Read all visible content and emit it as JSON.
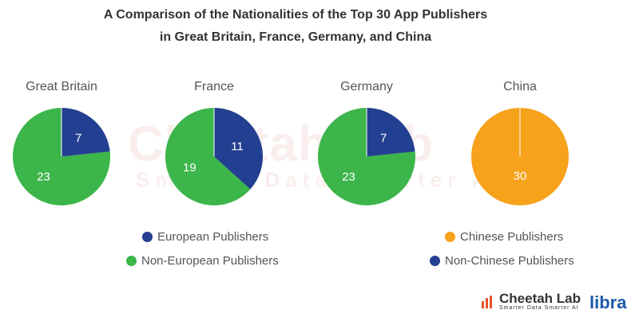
{
  "title_line1": "A Comparison of the Nationalities of the Top 30 App Publishers",
  "title_line2": "in Great Britain, France, Germany, and China",
  "colors": {
    "european": "#233f91",
    "non_european": "#3cb54a",
    "chinese": "#f7a21b",
    "non_chinese": "#233f91"
  },
  "chart_data": {
    "type": "pie",
    "title": "A Comparison of the Nationalities of the Top 30 App Publishers in Great Britain, France, Germany, and China",
    "pies": [
      {
        "country": "Great Britain",
        "slices": [
          {
            "label": "European Publishers",
            "value": 7,
            "color": "#233f91"
          },
          {
            "label": "Non-European Publishers",
            "value": 23,
            "color": "#3cb54a"
          }
        ]
      },
      {
        "country": "France",
        "slices": [
          {
            "label": "European Publishers",
            "value": 11,
            "color": "#233f91"
          },
          {
            "label": "Non-European Publishers",
            "value": 19,
            "color": "#3cb54a"
          }
        ]
      },
      {
        "country": "Germany",
        "slices": [
          {
            "label": "European Publishers",
            "value": 7,
            "color": "#233f91"
          },
          {
            "label": "Non-European Publishers",
            "value": 23,
            "color": "#3cb54a"
          }
        ]
      },
      {
        "country": "China",
        "slices": [
          {
            "label": "Non-Chinese Publishers",
            "value": 0,
            "color": "#233f91"
          },
          {
            "label": "Chinese Publishers",
            "value": 30,
            "color": "#f7a21b"
          }
        ]
      }
    ],
    "legend": [
      {
        "label": "European Publishers",
        "color": "#233f91"
      },
      {
        "label": "Non-European Publishers",
        "color": "#3cb54a"
      },
      {
        "label": "Chinese Publishers",
        "color": "#f7a21b"
      },
      {
        "label": "Non-Chinese Publishers",
        "color": "#233f91"
      }
    ]
  },
  "watermark": {
    "name": "Cheetah Lab",
    "tagline": "Smarter Data Smarter AI"
  },
  "logo": {
    "name": "Cheetah Lab",
    "tagline": "Smarter Data Smarter AI",
    "partner": "libra"
  }
}
